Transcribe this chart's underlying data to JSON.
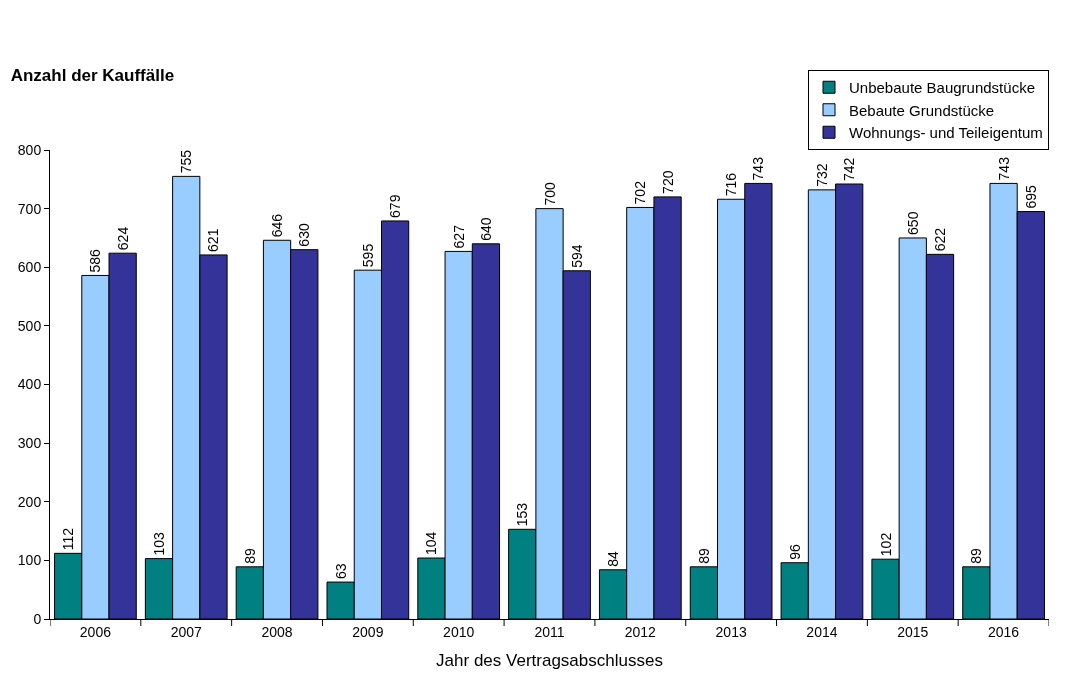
{
  "chart_data": {
    "type": "bar",
    "title": "Anzahl der Kauffälle",
    "xlabel": "Jahr des Vertragsabschlusses",
    "categories": [
      "2006",
      "2007",
      "2008",
      "2009",
      "2010",
      "2011",
      "2012",
      "2013",
      "2014",
      "2015",
      "2016"
    ],
    "series": [
      {
        "name": "Unbebaute Baugrundstücke",
        "color": "#008080",
        "values": [
          112,
          103,
          89,
          63,
          104,
          153,
          84,
          89,
          96,
          102,
          89
        ]
      },
      {
        "name": "Bebaute Grundstücke",
        "color": "#99ccff",
        "values": [
          586,
          755,
          646,
          595,
          627,
          700,
          702,
          716,
          732,
          650,
          743
        ]
      },
      {
        "name": "Wohnungs- und Teileigentum",
        "color": "#333399",
        "values": [
          624,
          621,
          630,
          679,
          640,
          594,
          720,
          743,
          742,
          622,
          695
        ]
      }
    ],
    "ylim": [
      0,
      800
    ],
    "yticks": [
      0,
      100,
      200,
      300,
      400,
      500,
      600,
      700,
      800
    ],
    "data_labels": true,
    "legend": "top right",
    "grid": false
  }
}
